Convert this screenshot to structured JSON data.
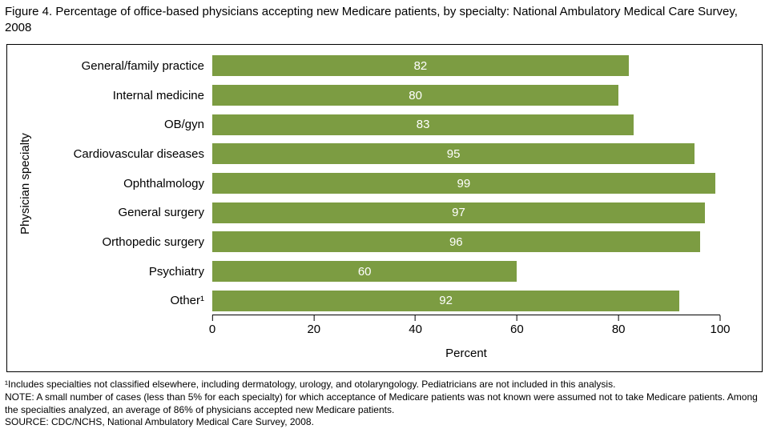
{
  "title": "Figure 4. Percentage of office-based physicians accepting new Medicare patients, by specialty: National Ambulatory Medical Care Survey, 2008",
  "chart_data": {
    "type": "bar",
    "orientation": "horizontal",
    "title": "Figure 4. Percentage of office-based physicians accepting new Medicare patients, by specialty: National Ambulatory Medical Care Survey, 2008",
    "categories": [
      "General/family practice",
      "Internal medicine",
      "OB/gyn",
      "Cardiovascular diseases",
      "Ophthalmology",
      "General surgery",
      "Orthopedic surgery",
      "Psychiatry",
      "Other¹"
    ],
    "values": [
      82,
      80,
      83,
      95,
      99,
      97,
      96,
      60,
      92
    ],
    "xlabel": "Percent",
    "ylabel": "Physician specialty",
    "xlim": [
      0,
      100
    ],
    "xticks": [
      0,
      20,
      40,
      60,
      80,
      100
    ],
    "bar_color": "#7C9C42",
    "value_label_color": "#ffffff",
    "grid": false,
    "legend": "none"
  },
  "footnotes": [
    "¹Includes specialties not classified elsewhere, including dermatology, urology, and otolaryngology. Pediatricians are not included in this analysis.",
    "NOTE: A small number of cases (less than 5% for each specialty) for which acceptance of Medicare patients was not known were assumed not to take Medicare patients. Among the specialties analyzed, an average of 86% of physicians accepted new Medicare patients.",
    "SOURCE: CDC/NCHS, National Ambulatory Medical Care Survey, 2008."
  ]
}
